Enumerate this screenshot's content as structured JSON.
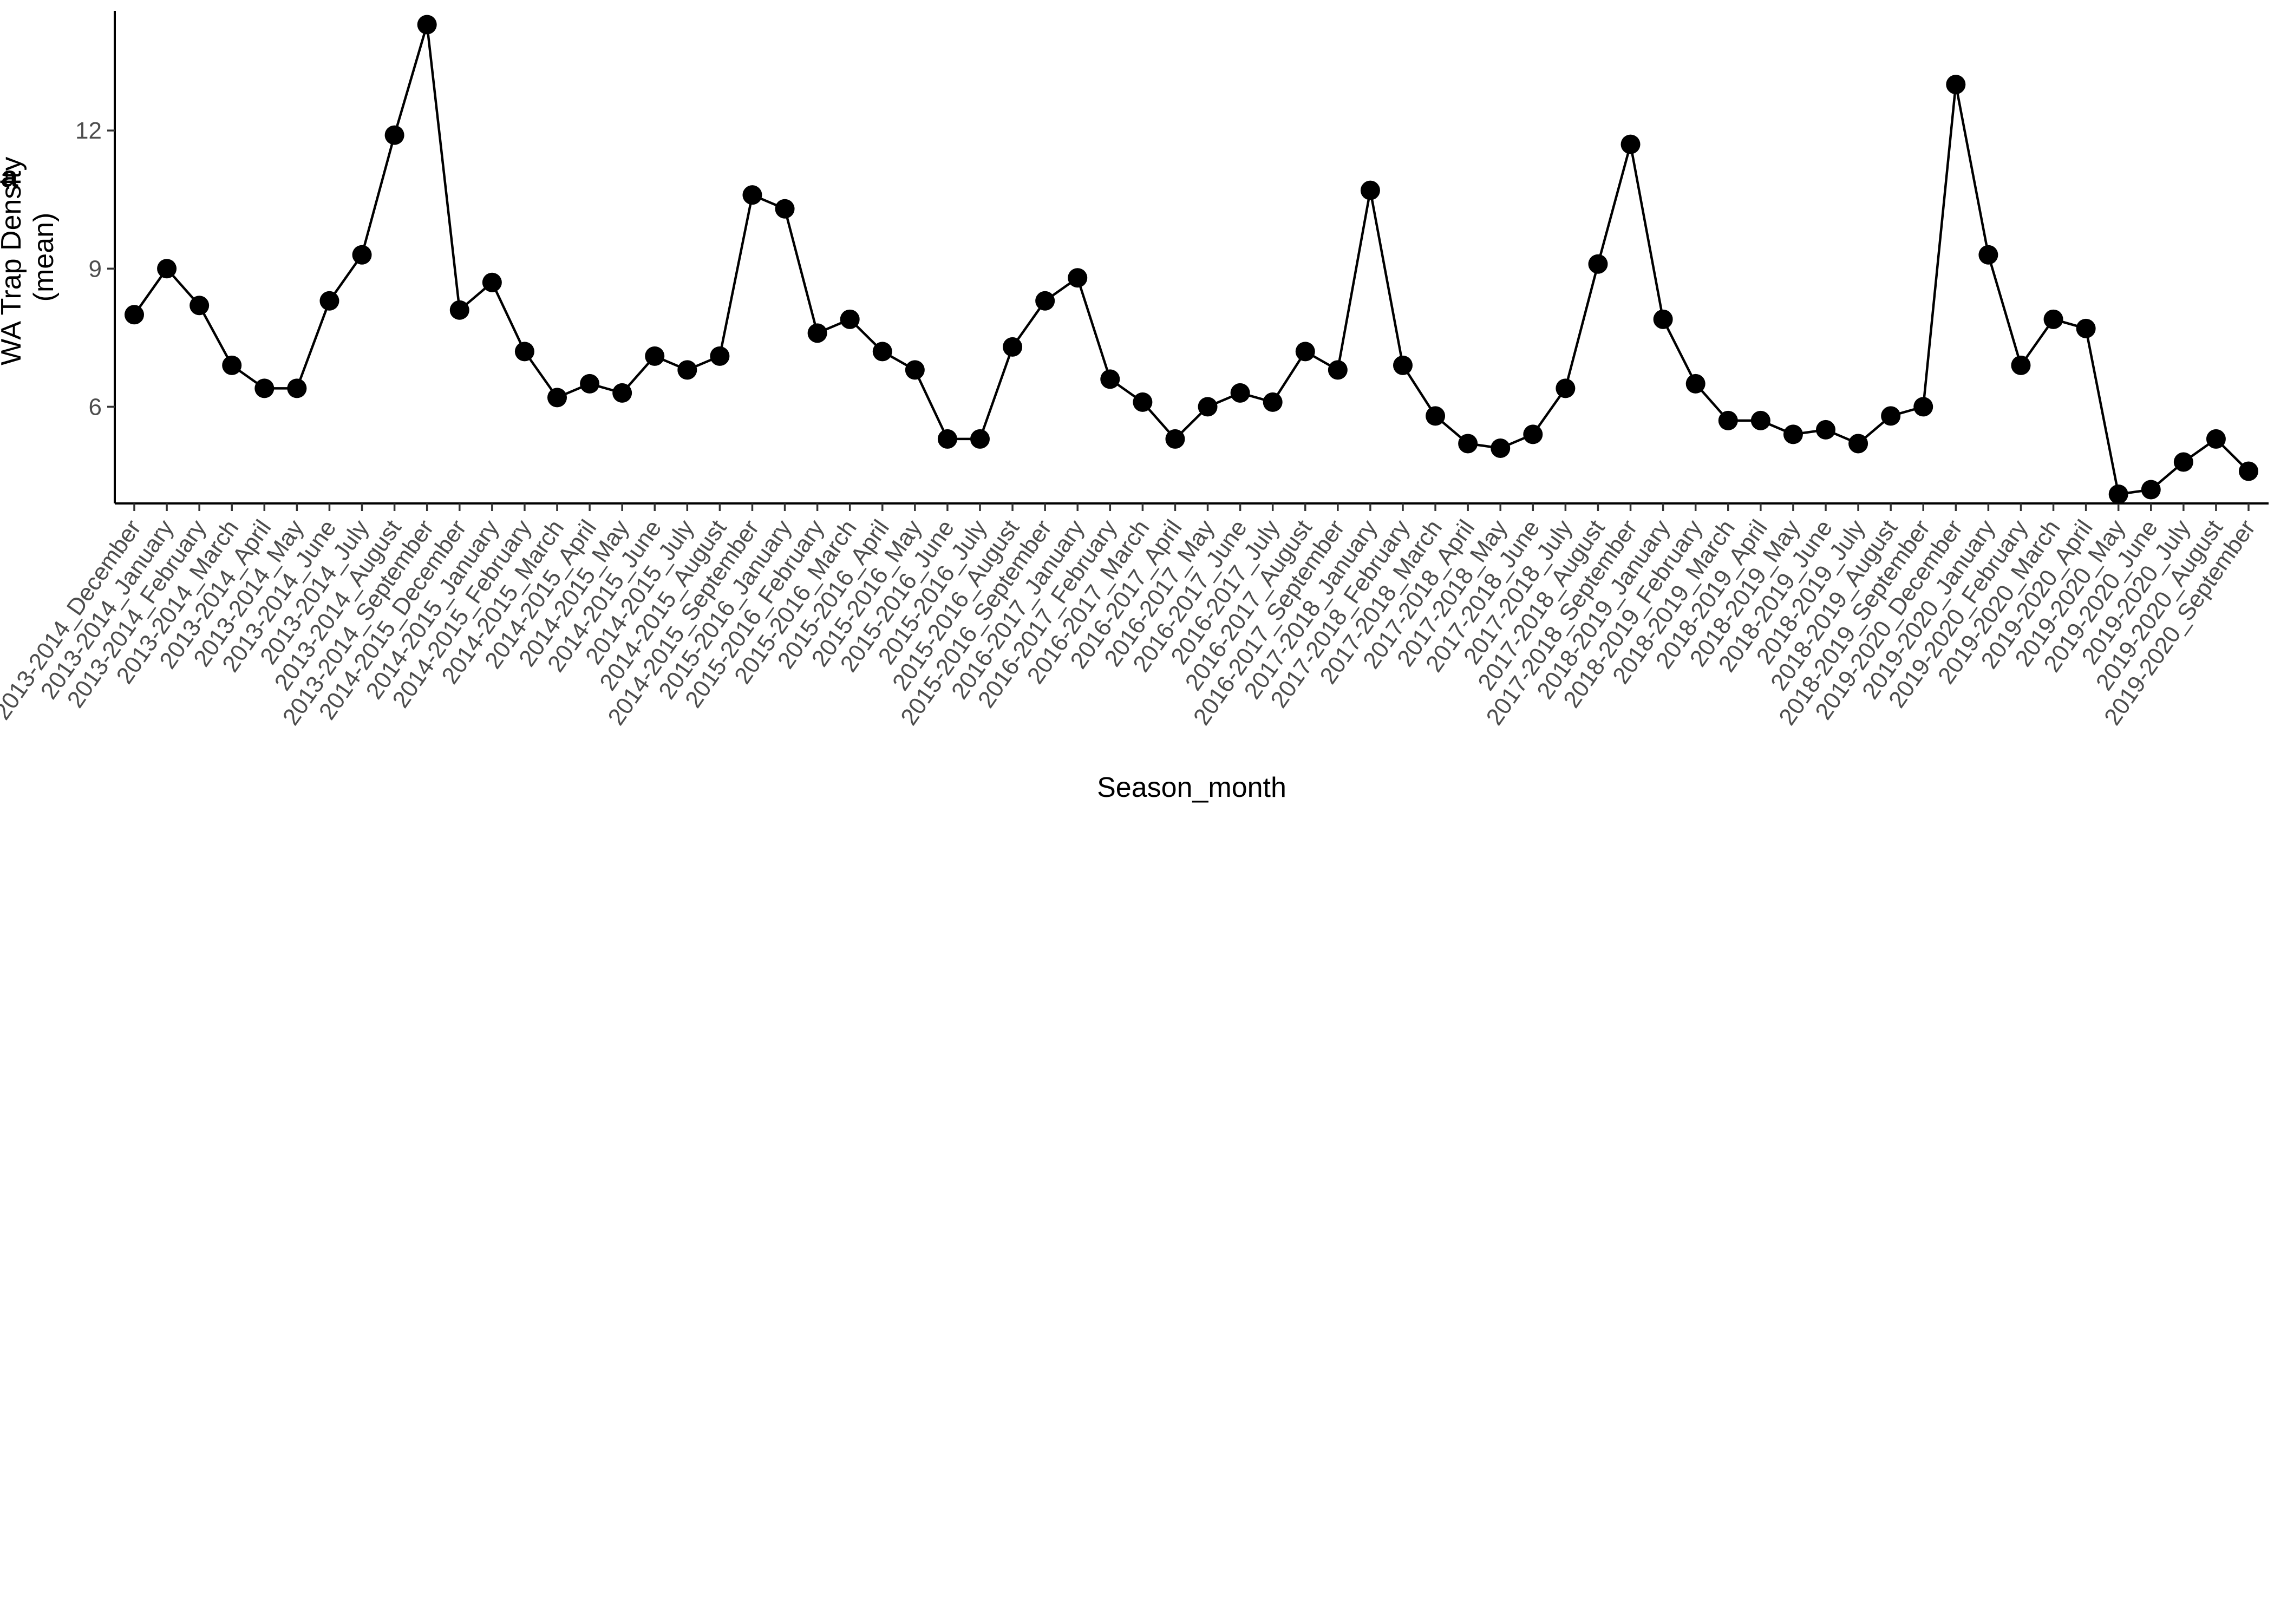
{
  "panel_label": "a",
  "colors": {
    "line": "#000000",
    "point": "#000000",
    "tick_text": "#4d4d4d",
    "background": "#ffffff"
  },
  "chart_data": {
    "type": "line",
    "title": "",
    "xlabel": "Season_month",
    "ylabel_lines": [
      "WA Trap Density",
      "(mean)"
    ],
    "ylim": [
      3.9,
      14.6
    ],
    "y_ticks": [
      6,
      9,
      12
    ],
    "grid": false,
    "legend": "none",
    "categories": [
      "2013-2014_December",
      "2013-2014_January",
      "2013-2014_February",
      "2013-2014_March",
      "2013-2014_April",
      "2013-2014_May",
      "2013-2014_June",
      "2013-2014_July",
      "2013-2014_August",
      "2013-2014_September",
      "2014-2015_December",
      "2014-2015_January",
      "2014-2015_February",
      "2014-2015_March",
      "2014-2015_April",
      "2014-2015_May",
      "2014-2015_June",
      "2014-2015_July",
      "2014-2015_August",
      "2014-2015_September",
      "2015-2016_January",
      "2015-2016_February",
      "2015-2016_March",
      "2015-2016_April",
      "2015-2016_May",
      "2015-2016_June",
      "2015-2016_July",
      "2015-2016_August",
      "2015-2016_September",
      "2016-2017_January",
      "2016-2017_February",
      "2016-2017_March",
      "2016-2017_April",
      "2016-2017_May",
      "2016-2017_June",
      "2016-2017_July",
      "2016-2017_August",
      "2016-2017_September",
      "2017-2018_January",
      "2017-2018_February",
      "2017-2018_March",
      "2017-2018_April",
      "2017-2018_May",
      "2017-2018_June",
      "2017-2018_July",
      "2017-2018_August",
      "2017-2018_September",
      "2018-2019_January",
      "2018-2019_February",
      "2018-2019_March",
      "2018-2019_April",
      "2018-2019_May",
      "2018-2019_June",
      "2018-2019_July",
      "2018-2019_August",
      "2018-2019_September",
      "2019-2020_December",
      "2019-2020_January",
      "2019-2020_February",
      "2019-2020_March",
      "2019-2020_April",
      "2019-2020_May",
      "2019-2020_June",
      "2019-2020_July",
      "2019-2020_August",
      "2019-2020_September"
    ],
    "values": [
      8.0,
      9.0,
      8.2,
      6.9,
      6.4,
      6.4,
      8.3,
      9.3,
      11.9,
      14.3,
      8.1,
      8.7,
      7.2,
      6.2,
      6.5,
      6.3,
      7.1,
      6.8,
      7.1,
      10.6,
      10.3,
      7.6,
      7.9,
      7.2,
      6.8,
      5.3,
      5.3,
      7.3,
      8.3,
      8.8,
      6.6,
      6.1,
      5.3,
      6.0,
      6.3,
      6.1,
      7.2,
      6.8,
      10.7,
      6.9,
      5.8,
      5.2,
      5.1,
      5.4,
      6.4,
      9.1,
      11.7,
      7.9,
      6.5,
      5.7,
      5.7,
      5.4,
      5.5,
      5.2,
      5.8,
      6.0,
      13.0,
      9.3,
      6.9,
      7.9,
      7.7,
      4.1,
      4.2,
      4.8,
      5.3,
      4.6
    ]
  }
}
